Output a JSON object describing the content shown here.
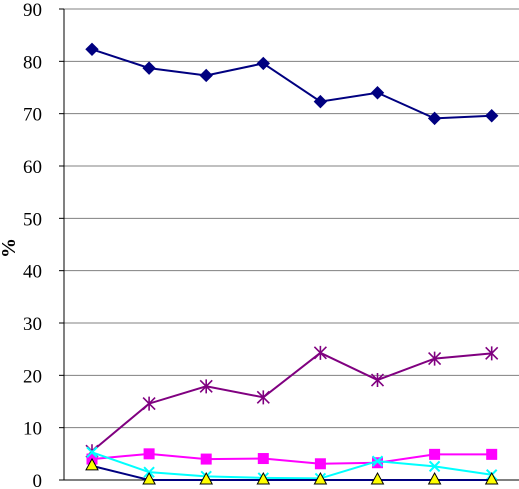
{
  "chart_data": {
    "type": "line",
    "title": "",
    "xlabel": "",
    "ylabel": "%",
    "ylim": [
      0,
      90
    ],
    "yticks": [
      "0",
      "10",
      "20",
      "30",
      "40",
      "50",
      "60",
      "70",
      "80",
      "90"
    ],
    "x": [
      1,
      2,
      3,
      4,
      5,
      6,
      7,
      8
    ],
    "grid": "horizontal",
    "legend": "none",
    "series": [
      {
        "color": "#000080",
        "marker": "diamond",
        "values": [
          82.3,
          78.7,
          77.3,
          79.6,
          72.3,
          74.0,
          69.1,
          69.6
        ]
      },
      {
        "color": "#800080",
        "marker": "star",
        "values": [
          5.5,
          14.6,
          17.9,
          15.8,
          24.3,
          19.1,
          23.2,
          24.2
        ]
      },
      {
        "color": "#FF00FF",
        "marker": "square",
        "values": [
          4.0,
          5.0,
          4.0,
          4.1,
          3.1,
          3.3,
          4.9,
          4.9
        ]
      },
      {
        "color": "#00FFFF",
        "marker": "x",
        "values": [
          5.3,
          1.5,
          0.7,
          0.4,
          0.3,
          3.6,
          2.6,
          1.0
        ]
      },
      {
        "color": "#000080",
        "marker": "triangle",
        "fill": "#FFFF00",
        "values": [
          2.7,
          0.0,
          0.0,
          0.0,
          0.0,
          0.0,
          0.0,
          0.0
        ]
      }
    ]
  }
}
